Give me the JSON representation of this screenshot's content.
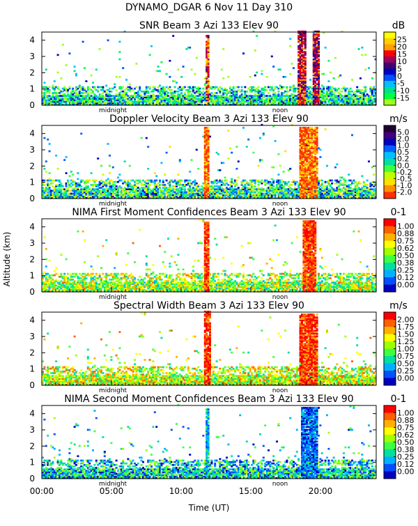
{
  "figure": {
    "title": "DYNAMO_DGAR    6 Nov 11 Day 310",
    "ylabel": "Altitude (km)",
    "xlabel": "Time (UT)",
    "x_ticks": [
      "00:00",
      "05:00",
      "10:00",
      "15:00",
      "20:00"
    ],
    "markers": [
      "midnight",
      "noon"
    ]
  },
  "chart_data": [
    {
      "type": "heatmap",
      "title": "SNR Beam 3 Azi 133 Elev 90",
      "unit": "dB",
      "colorbar_labels": [
        "25",
        "20",
        "15",
        "10",
        "5",
        "0",
        "-5",
        "-10",
        "-15"
      ],
      "colors": [
        "#ffff00",
        "#ffd000",
        "#ffa000",
        "#ff0000",
        "#a00060",
        "#400070",
        "#0000c0",
        "#0050ff",
        "#00c0ff",
        "#00e090",
        "#00ff40",
        "#a0ff20"
      ],
      "y_ticks": [
        "0",
        "1",
        "2",
        "3",
        "4"
      ],
      "ylim": [
        0,
        4.5
      ],
      "xlim": [
        0,
        24
      ],
      "features": [
        {
          "x": 11.8,
          "top": 4.3,
          "w": 0.2,
          "level": 0.75
        },
        {
          "x": 18.6,
          "top": 4.5,
          "w": 0.45,
          "level": 0.7
        },
        {
          "x": 19.6,
          "top": 4.5,
          "w": 0.3,
          "level": 0.65
        }
      ],
      "noise_level": 0.15
    },
    {
      "type": "heatmap",
      "title": "Doppler Velocity Beam 3 Azi 133 Elev 90",
      "unit": "m/s",
      "colorbar_labels": [
        "5.0",
        "2.0",
        "1.0",
        "0.5",
        "0.2",
        "0.0",
        "-0.2",
        "-0.5",
        "-1.0",
        "-2.0"
      ],
      "colors": [
        "#200030",
        "#400080",
        "#0000c0",
        "#0060ff",
        "#00c0ff",
        "#00e0a0",
        "#40ff40",
        "#c0ff00",
        "#ffe000",
        "#ff9000",
        "#ff3000"
      ],
      "y_ticks": [
        "0",
        "1",
        "2",
        "3",
        "4"
      ],
      "ylim": [
        0,
        4.5
      ],
      "xlim": [
        0,
        24
      ],
      "features": [
        {
          "x": 11.8,
          "top": 4.4,
          "w": 0.25,
          "level": 0.05
        },
        {
          "x": 19.1,
          "top": 4.4,
          "w": 1.2,
          "level": 0.05
        }
      ],
      "noise_level": 0.5
    },
    {
      "type": "heatmap",
      "title": "NIMA First Moment Confidences Beam 3 Azi 133 Elev 90",
      "unit": "0-1",
      "colorbar_labels": [
        "1.00",
        "0.88",
        "0.75",
        "0.62",
        "0.50",
        "0.38",
        "0.25",
        "0.12",
        "0.00"
      ],
      "colors": [
        "#ff0000",
        "#ff6000",
        "#ffb000",
        "#ffff00",
        "#a0ff00",
        "#40ff40",
        "#00e0a0",
        "#00b0ff",
        "#0050ff",
        "#0000c0"
      ],
      "y_ticks": [
        "0",
        "1",
        "2",
        "3",
        "4"
      ],
      "ylim": [
        0,
        4.5
      ],
      "xlim": [
        0,
        24
      ],
      "features": [
        {
          "x": 11.8,
          "top": 4.3,
          "w": 0.25,
          "level": 0.95
        },
        {
          "x": 19.1,
          "top": 4.4,
          "w": 0.9,
          "level": 0.95
        }
      ],
      "noise_level": 0.55
    },
    {
      "type": "heatmap",
      "title": "Spectral Width Beam 3 Azi 133 Elev 90",
      "unit": "m/s",
      "colorbar_labels": [
        "2.00",
        "1.75",
        "1.50",
        "1.25",
        "1.00",
        "0.75",
        "0.50",
        "0.25",
        "0.00"
      ],
      "colors": [
        "#ff0000",
        "#ff6000",
        "#ffb000",
        "#ffff00",
        "#a0ff00",
        "#40ff40",
        "#00e0a0",
        "#00b0ff",
        "#0050ff",
        "#0000c0"
      ],
      "y_ticks": [
        "0",
        "1",
        "2",
        "3",
        "4"
      ],
      "ylim": [
        0,
        4.5
      ],
      "xlim": [
        0,
        24
      ],
      "features": [
        {
          "x": 11.8,
          "top": 4.5,
          "w": 0.3,
          "level": 0.95
        },
        {
          "x": 19.1,
          "top": 4.4,
          "w": 1.2,
          "level": 0.95
        }
      ],
      "noise_level": 0.6
    },
    {
      "type": "heatmap",
      "title": "NIMA Second Moment Confidences Beam 3 Azi 133 Elev 90",
      "unit": "0-1",
      "colorbar_labels": [
        "1.00",
        "0.88",
        "0.75",
        "0.62",
        "0.50",
        "0.38",
        "0.25",
        "0.12",
        "0.00"
      ],
      "colors": [
        "#ff0000",
        "#ff6000",
        "#ffb000",
        "#ffff00",
        "#a0ff00",
        "#40ff40",
        "#00e0a0",
        "#00b0ff",
        "#0050ff",
        "#0000c0"
      ],
      "y_ticks": [
        "0",
        "1",
        "2",
        "3",
        "4"
      ],
      "ylim": [
        0,
        4.5
      ],
      "xlim": [
        0,
        24
      ],
      "features": [
        {
          "x": 11.8,
          "top": 4.3,
          "w": 0.2,
          "level": 0.25
        },
        {
          "x": 19.1,
          "top": 4.4,
          "w": 1.1,
          "level": 0.15
        }
      ],
      "noise_level": 0.3
    }
  ]
}
